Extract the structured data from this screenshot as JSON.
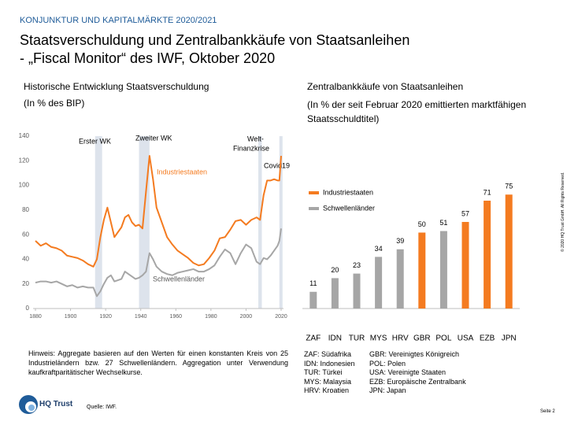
{
  "header": {
    "kicker": "KONJUNKTUR UND KAPITALMÄRKTE 2020/2021",
    "title": [
      "Staatsverschuldung und Zentralbankkäufe von Staatsanleihen",
      "- „Fiscal Monitor“ des IWF, Oktober 2020"
    ]
  },
  "chart_data": [
    {
      "type": "line",
      "title": "Historische Entwicklung Staatsverschuldung",
      "subtitle": "(In % des BIP)",
      "x": [
        1880,
        1883,
        1886,
        1889,
        1892,
        1895,
        1898,
        1901,
        1904,
        1907,
        1910,
        1913,
        1915,
        1917,
        1919,
        1921,
        1923,
        1925,
        1927,
        1929,
        1931,
        1933,
        1935,
        1937,
        1939,
        1941,
        1943,
        1945,
        1947,
        1949,
        1952,
        1955,
        1958,
        1961,
        1964,
        1967,
        1970,
        1973,
        1976,
        1979,
        1982,
        1985,
        1988,
        1991,
        1994,
        1997,
        2000,
        2003,
        2006,
        2008,
        2010,
        2012,
        2014,
        2016,
        2018,
        2019,
        2020
      ],
      "series": [
        {
          "name": "Industriestaaten",
          "color": "#f47b20",
          "values": [
            55,
            51,
            53,
            50,
            49,
            47,
            43,
            42,
            41,
            39,
            36,
            34,
            40,
            58,
            72,
            82,
            70,
            58,
            62,
            66,
            74,
            76,
            70,
            67,
            68,
            65,
            95,
            124,
            105,
            82,
            70,
            58,
            52,
            47,
            44,
            41,
            37,
            35,
            36,
            41,
            47,
            57,
            58,
            64,
            71,
            72,
            68,
            72,
            74,
            72,
            92,
            104,
            104,
            105,
            104,
            104,
            124
          ]
        },
        {
          "name": "Schwellenländer",
          "color": "#a6a6a6",
          "values": [
            21,
            22,
            22,
            21,
            22,
            20,
            18,
            19,
            17,
            18,
            17,
            17,
            10,
            14,
            20,
            25,
            27,
            22,
            23,
            24,
            30,
            28,
            26,
            24,
            25,
            27,
            30,
            45,
            40,
            34,
            30,
            28,
            27,
            29,
            30,
            31,
            32,
            30,
            30,
            32,
            35,
            42,
            48,
            45,
            36,
            45,
            52,
            49,
            38,
            36,
            41,
            40,
            43,
            47,
            51,
            55,
            65
          ]
        }
      ],
      "bands": [
        {
          "label": "Erster WK",
          "range": [
            1914,
            1918
          ]
        },
        {
          "label": "Zweiter WK",
          "range": [
            1939,
            1945
          ]
        },
        {
          "label": [
            "Welt-",
            "Finanzkrise"
          ],
          "range": [
            2007,
            2009
          ]
        },
        {
          "label": "Covid19",
          "range": [
            2019,
            2020
          ]
        }
      ],
      "xlim": [
        1880,
        2020
      ],
      "xticks": [
        1880,
        1900,
        1920,
        1940,
        1960,
        1980,
        2000,
        2020
      ],
      "ylim": [
        0,
        140
      ],
      "yticks": [
        0,
        20,
        40,
        60,
        80,
        100,
        120,
        140
      ],
      "grid": false
    },
    {
      "type": "bar",
      "title": "Zentralbankkäufe von Staatsanleihen",
      "subtitle": [
        "(In % der seit Februar 2020 emittierten marktfähigen",
        "Staatsschuldtitel)"
      ],
      "categories": [
        "ZAF",
        "IDN",
        "TUR",
        "MYS",
        "HRV",
        "GBR",
        "POL",
        "USA",
        "EZB",
        "JPN"
      ],
      "values": [
        11,
        20,
        23,
        34,
        39,
        50,
        51,
        57,
        71,
        75
      ],
      "colors": [
        "#a6a6a6",
        "#a6a6a6",
        "#a6a6a6",
        "#a6a6a6",
        "#a6a6a6",
        "#f47b20",
        "#a6a6a6",
        "#f47b20",
        "#f47b20",
        "#f47b20"
      ],
      "legend": [
        {
          "name": "Industriestaaten",
          "color": "#f47b20"
        },
        {
          "name": "Schwellenländer",
          "color": "#a6a6a6"
        }
      ]
    }
  ],
  "note": "Hinweis: Aggregate basieren auf den Werten für einen konstanten Kreis von 25 Industrieländern bzw. 27 Schwellenländern. Aggregation unter Verwendung kaufkraftparitätischer Wechselkurse.",
  "abbreviations": {
    "left": [
      "ZAF: Südafrika",
      "IDN: Indonesien",
      "TUR: Türkei",
      "MYS: Malaysia",
      "HRV: Kroatien"
    ],
    "right": [
      "GBR: Vereinigtes Königreich",
      "POL: Polen",
      "USA: Vereinigte Staaten",
      "EZB: Europäische Zentralbank",
      "JPN: Japan"
    ]
  },
  "source": "Quelle: IWF.",
  "logo": "HQ Trust",
  "copyright": "© 2020 HQ Trust GmbH. All Rights Reserved.",
  "page": "Seite 2"
}
